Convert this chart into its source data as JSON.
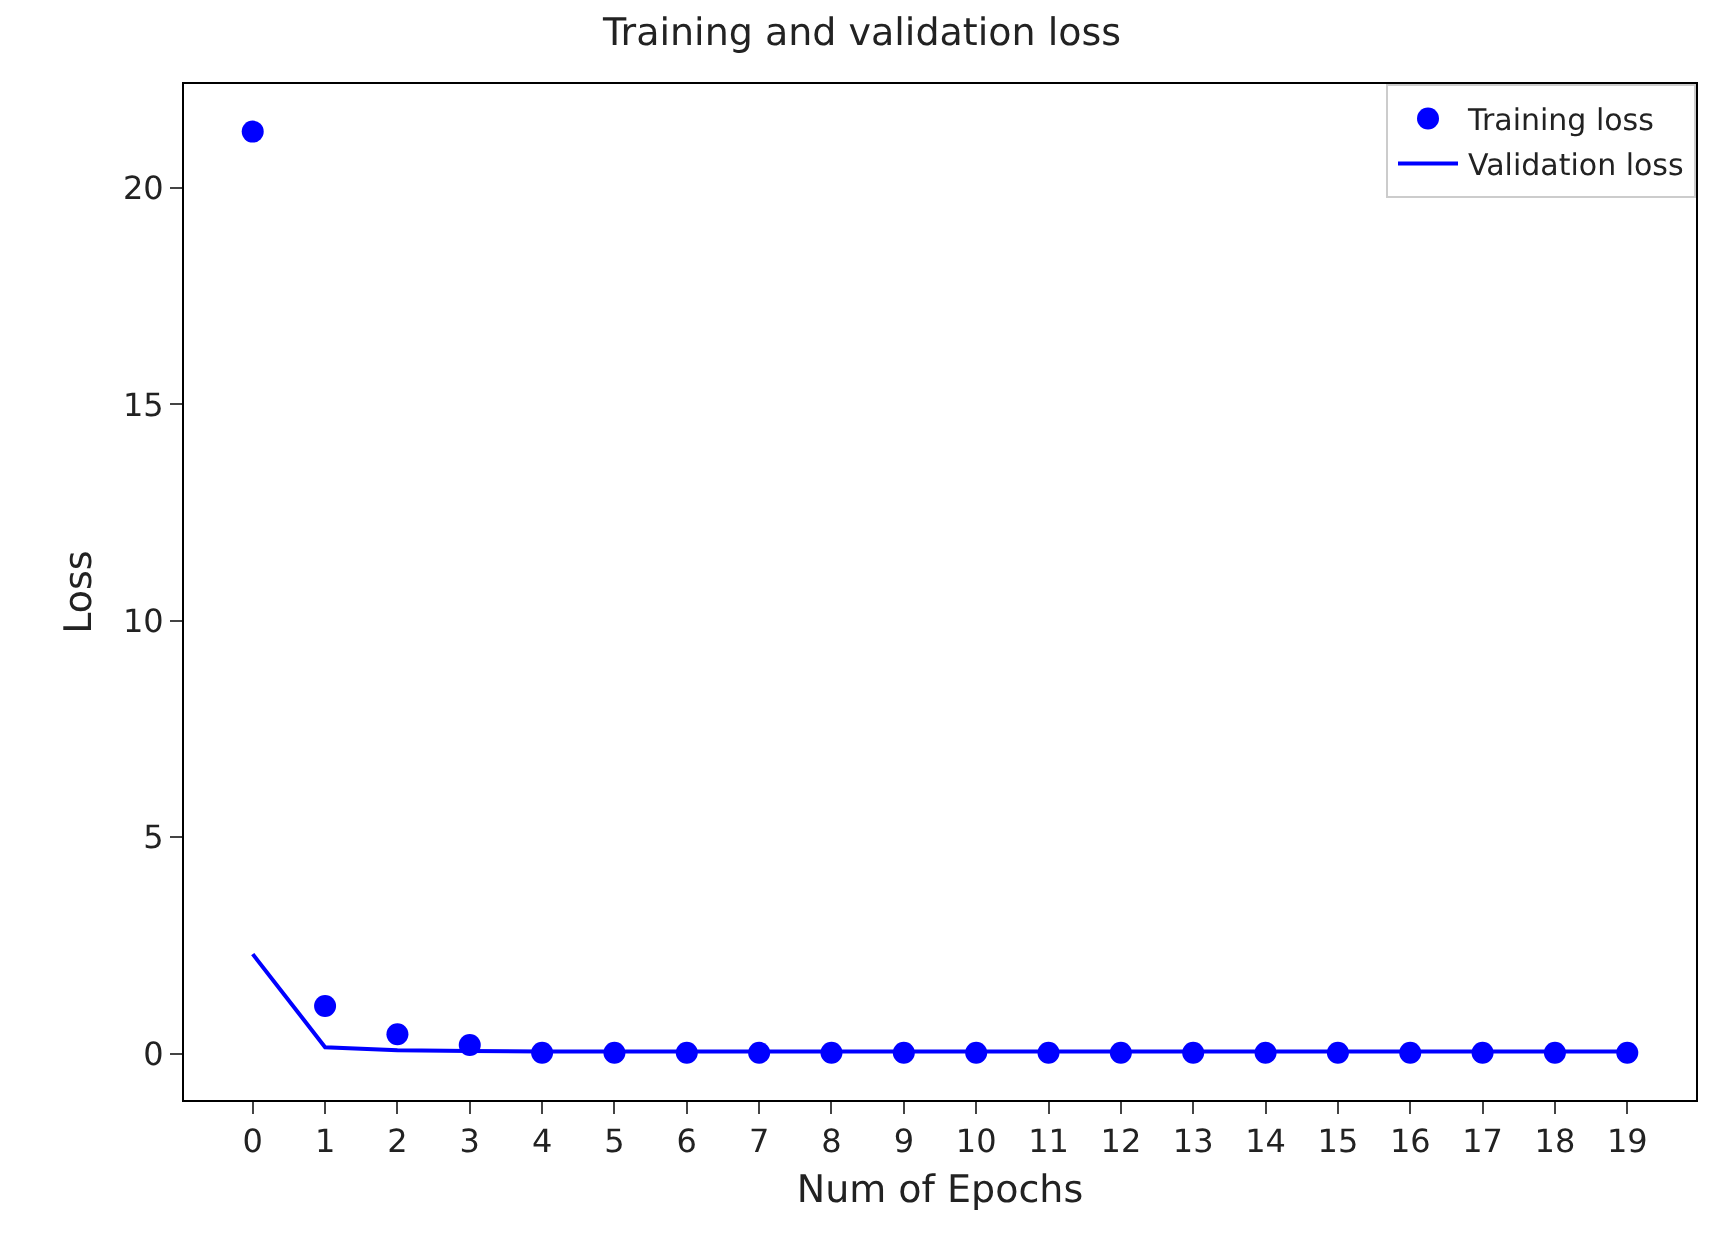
{
  "chart_data": {
    "type": "line",
    "title": "Training and validation loss",
    "xlabel": "Num of Epochs",
    "ylabel": "Loss",
    "x": [
      0,
      1,
      2,
      3,
      4,
      5,
      6,
      7,
      8,
      9,
      10,
      11,
      12,
      13,
      14,
      15,
      16,
      17,
      18,
      19
    ],
    "series": [
      {
        "name": "Training loss",
        "type": "scatter",
        "marker": "circle",
        "color": "#0000ff",
        "values": [
          21.3,
          1.1,
          0.45,
          0.2,
          0.02,
          0.02,
          0.02,
          0.02,
          0.02,
          0.02,
          0.02,
          0.02,
          0.02,
          0.02,
          0.02,
          0.02,
          0.02,
          0.02,
          0.02,
          0.02
        ]
      },
      {
        "name": "Validation loss",
        "type": "line",
        "line_style": "solid",
        "color": "#0000ff",
        "values": [
          2.3,
          0.15,
          0.08,
          0.06,
          0.05,
          0.05,
          0.05,
          0.05,
          0.05,
          0.05,
          0.05,
          0.05,
          0.05,
          0.05,
          0.05,
          0.05,
          0.05,
          0.05,
          0.05,
          0.05
        ]
      }
    ],
    "xlim": [
      -0.95,
      19.95
    ],
    "xticks": [
      0,
      1,
      2,
      3,
      4,
      5,
      6,
      7,
      8,
      9,
      10,
      11,
      12,
      13,
      14,
      15,
      16,
      17,
      18,
      19
    ],
    "ylim": [
      -1.07,
      22.4
    ],
    "yticks": [
      0,
      5,
      10,
      15,
      20
    ],
    "grid": false,
    "legend": "top right"
  }
}
